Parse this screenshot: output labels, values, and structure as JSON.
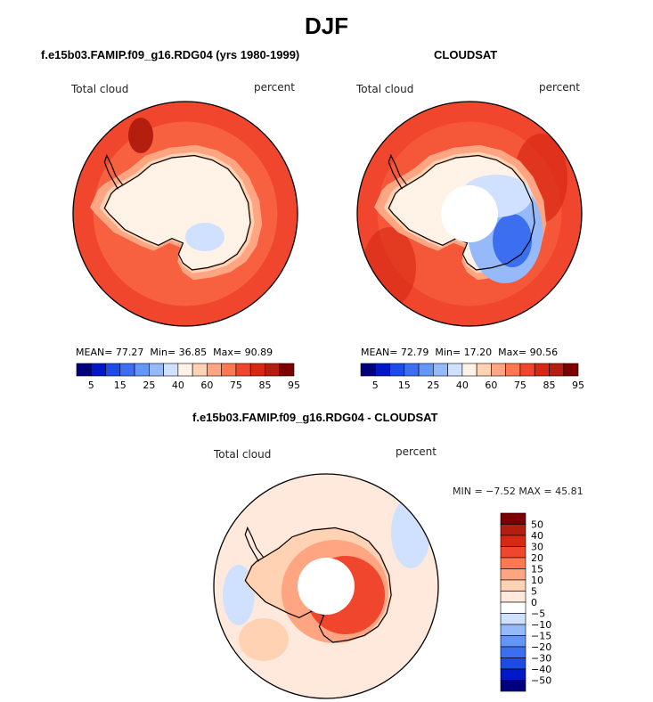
{
  "figure_title": "DJF",
  "colors": {
    "abs_scale": [
      "#00007d",
      "#0018c8",
      "#1e4be6",
      "#3c6ef0",
      "#6496f5",
      "#96b9fa",
      "#cfe1ff",
      "#fff2e6",
      "#ffd2b4",
      "#ffa582",
      "#ff7850",
      "#f0462d",
      "#d72814",
      "#b41e0f",
      "#7d0000"
    ],
    "diff_scale": [
      "#00007d",
      "#0018c8",
      "#1e4be6",
      "#3c6ef0",
      "#6496f5",
      "#96b9fa",
      "#cfe1ff",
      "#ffffff",
      "#ffe8dc",
      "#ffd2b4",
      "#ffa582",
      "#ff7850",
      "#f0462d",
      "#d72814",
      "#b41e0f",
      "#7d0000"
    ],
    "land_line": "#000000"
  },
  "chart_data": [
    {
      "type": "heatmap",
      "projection": "south-polar-stereographic",
      "title": "f.e15b03.FAMIP.f09_g16.RDG04 (yrs 1980-1999)",
      "left_label": "Total cloud",
      "right_label": "percent",
      "stats": {
        "mean_label": "MEAN=",
        "mean": "77.27",
        "min_label": "Min=",
        "min": "36.85",
        "max_label": "Max=",
        "max": "90.89"
      },
      "colorbar_levels": [
        5,
        10,
        15,
        20,
        25,
        30,
        40,
        50,
        60,
        70,
        75,
        80,
        85,
        90,
        95
      ],
      "colorbar_tick_labels": [
        "5",
        "15",
        "25",
        "40",
        "60",
        "75",
        "85",
        "95"
      ],
      "polar_gap": false
    },
    {
      "type": "heatmap",
      "projection": "south-polar-stereographic",
      "title": "CLOUDSAT",
      "left_label": "Total cloud",
      "right_label": "percent",
      "stats": {
        "mean_label": "MEAN=",
        "mean": "72.79",
        "min_label": "Min=",
        "min": "17.20",
        "max_label": "Max=",
        "max": "90.56"
      },
      "colorbar_levels": [
        5,
        10,
        15,
        20,
        25,
        30,
        40,
        50,
        60,
        70,
        75,
        80,
        85,
        90,
        95
      ],
      "colorbar_tick_labels": [
        "5",
        "15",
        "25",
        "40",
        "60",
        "75",
        "85",
        "95"
      ],
      "polar_gap": true
    },
    {
      "type": "heatmap",
      "projection": "south-polar-stereographic",
      "title": "f.e15b03.FAMIP.f09_g16.RDG04 - CLOUDSAT",
      "left_label": "Total cloud",
      "right_label": "percent",
      "stats_line": "MIN = −7.52 MAX = 45.81",
      "colorbar_levels": [
        50,
        40,
        30,
        20,
        15,
        10,
        5,
        0,
        -5,
        -10,
        -15,
        -20,
        -30,
        -40,
        -50
      ],
      "colorbar_tick_labels": [
        "50",
        "40",
        "30",
        "20",
        "15",
        "10",
        "5",
        "0",
        "−5",
        "−10",
        "−15",
        "−20",
        "−30",
        "−40",
        "−50"
      ],
      "polar_gap": true
    }
  ]
}
